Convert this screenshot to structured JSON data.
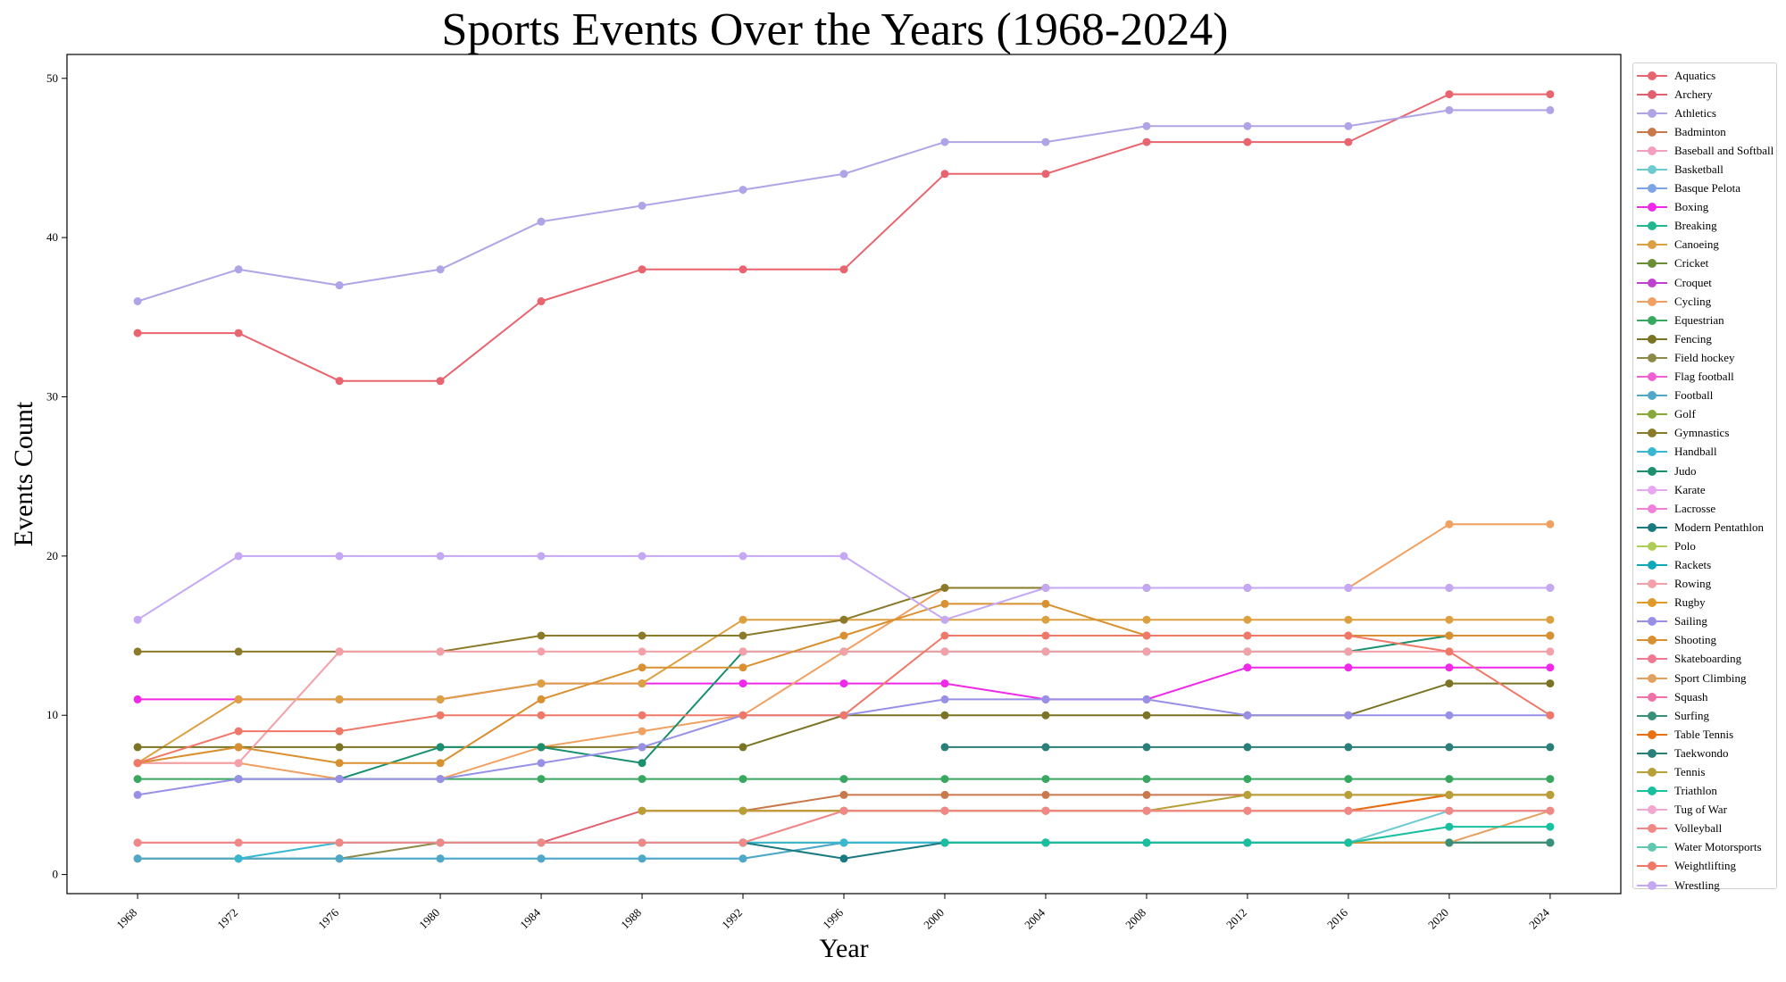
{
  "chart_data": {
    "type": "line",
    "title": "Sports Events Over the Years (1968-2024)",
    "xlabel": "Year",
    "ylabel": "Events Count",
    "ylim": [
      -1.2,
      51.5
    ],
    "yticks": [
      0,
      10,
      20,
      30,
      40,
      50
    ],
    "grid": false,
    "legend_position": "right",
    "x": [
      1968,
      1972,
      1976,
      1980,
      1984,
      1988,
      1992,
      1996,
      2000,
      2004,
      2008,
      2012,
      2016,
      2020,
      2024
    ],
    "series": [
      {
        "name": "Aquatics",
        "color": "#e8646e",
        "values": [
          34,
          34,
          31,
          31,
          36,
          38,
          38,
          38,
          44,
          44,
          46,
          46,
          46,
          49,
          49
        ]
      },
      {
        "name": "Archery",
        "color": "#e2606e",
        "values": [
          2,
          2,
          2,
          2,
          2,
          4,
          4,
          4,
          4,
          4,
          4,
          4,
          4,
          5,
          5
        ]
      },
      {
        "name": "Athletics",
        "color": "#b0a4e6",
        "values": [
          36,
          38,
          37,
          38,
          41,
          42,
          43,
          44,
          46,
          46,
          47,
          47,
          47,
          48,
          48
        ]
      },
      {
        "name": "Badminton",
        "color": "#c8784a",
        "values": [
          null,
          null,
          null,
          null,
          null,
          null,
          4,
          5,
          5,
          5,
          5,
          5,
          5,
          5,
          5
        ]
      },
      {
        "name": "Baseball and Softball",
        "color": "#f2a0c0",
        "values": [
          null,
          null,
          null,
          null,
          null,
          null,
          2,
          4,
          4,
          4,
          4,
          null,
          null,
          2,
          null
        ]
      },
      {
        "name": "Basketball",
        "color": "#6ccbd2",
        "values": [
          1,
          1,
          1,
          1,
          1,
          1,
          1,
          2,
          2,
          2,
          2,
          2,
          2,
          4,
          4
        ]
      },
      {
        "name": "Basque Pelota",
        "color": "#7aa4e6",
        "values": [
          null,
          null,
          null,
          null,
          null,
          null,
          null,
          null,
          null,
          null,
          null,
          null,
          null,
          null,
          null
        ]
      },
      {
        "name": "Boxing",
        "color": "#f028e8",
        "values": [
          11,
          11,
          11,
          11,
          12,
          12,
          12,
          12,
          12,
          11,
          11,
          13,
          13,
          13,
          13
        ]
      },
      {
        "name": "Breaking",
        "color": "#20b890",
        "values": [
          null,
          null,
          null,
          null,
          null,
          null,
          null,
          null,
          null,
          null,
          null,
          null,
          null,
          null,
          2
        ]
      },
      {
        "name": "Canoeing",
        "color": "#dca040",
        "values": [
          7,
          11,
          11,
          11,
          12,
          12,
          16,
          16,
          16,
          16,
          16,
          16,
          16,
          16,
          16
        ]
      },
      {
        "name": "Cricket",
        "color": "#6a8e38",
        "values": [
          null,
          null,
          null,
          null,
          null,
          null,
          null,
          null,
          null,
          null,
          null,
          null,
          null,
          null,
          null
        ]
      },
      {
        "name": "Croquet",
        "color": "#c040d0",
        "values": [
          null,
          null,
          null,
          null,
          null,
          null,
          null,
          null,
          null,
          null,
          null,
          null,
          null,
          null,
          null
        ]
      },
      {
        "name": "Cycling",
        "color": "#f0a060",
        "values": [
          7,
          7,
          6,
          6,
          8,
          9,
          10,
          14,
          18,
          18,
          18,
          18,
          18,
          22,
          22
        ]
      },
      {
        "name": "Equestrian",
        "color": "#38a860",
        "values": [
          6,
          6,
          6,
          6,
          6,
          6,
          6,
          6,
          6,
          6,
          6,
          6,
          6,
          6,
          6
        ]
      },
      {
        "name": "Fencing",
        "color": "#7a7424",
        "values": [
          8,
          8,
          8,
          8,
          8,
          8,
          8,
          10,
          10,
          10,
          10,
          10,
          10,
          12,
          12
        ]
      },
      {
        "name": "Field hockey",
        "color": "#8c8a48",
        "values": [
          1,
          1,
          1,
          2,
          2,
          2,
          2,
          2,
          2,
          2,
          2,
          2,
          2,
          2,
          2
        ]
      },
      {
        "name": "Flag football",
        "color": "#f060d0",
        "values": [
          null,
          null,
          null,
          null,
          null,
          null,
          null,
          null,
          null,
          null,
          null,
          null,
          null,
          null,
          null
        ]
      },
      {
        "name": "Football",
        "color": "#50a8c8",
        "values": [
          1,
          1,
          1,
          1,
          1,
          1,
          1,
          2,
          2,
          2,
          2,
          2,
          2,
          2,
          2
        ]
      },
      {
        "name": "Golf",
        "color": "#88a838",
        "values": [
          null,
          null,
          null,
          null,
          null,
          null,
          null,
          null,
          null,
          null,
          null,
          null,
          2,
          2,
          2
        ]
      },
      {
        "name": "Gymnastics",
        "color": "#8a7a2a",
        "values": [
          14,
          14,
          14,
          14,
          15,
          15,
          15,
          16,
          18,
          18,
          18,
          18,
          18,
          18,
          18
        ]
      },
      {
        "name": "Handball",
        "color": "#38b8d0",
        "values": [
          null,
          1,
          2,
          2,
          2,
          2,
          2,
          2,
          2,
          2,
          2,
          2,
          2,
          2,
          2
        ]
      },
      {
        "name": "Judo",
        "color": "#1a9070",
        "values": [
          null,
          6,
          6,
          8,
          8,
          7,
          14,
          14,
          14,
          14,
          14,
          14,
          14,
          15,
          15
        ]
      },
      {
        "name": "Karate",
        "color": "#e8a8f0",
        "values": [
          null,
          null,
          null,
          null,
          null,
          null,
          null,
          null,
          null,
          null,
          null,
          null,
          null,
          null,
          null
        ]
      },
      {
        "name": "Lacrosse",
        "color": "#f080d8",
        "values": [
          null,
          null,
          null,
          null,
          null,
          null,
          null,
          null,
          null,
          null,
          null,
          null,
          null,
          null,
          null
        ]
      },
      {
        "name": "Modern Pentathlon",
        "color": "#1a7a80",
        "values": [
          null,
          null,
          null,
          null,
          null,
          null,
          2,
          1,
          2,
          2,
          2,
          2,
          2,
          2,
          2
        ]
      },
      {
        "name": "Polo",
        "color": "#b0cc58",
        "values": [
          null,
          null,
          null,
          null,
          null,
          null,
          null,
          null,
          null,
          null,
          null,
          null,
          null,
          null,
          null
        ]
      },
      {
        "name": "Rackets",
        "color": "#10a8b8",
        "values": [
          null,
          null,
          null,
          null,
          null,
          null,
          null,
          null,
          null,
          null,
          null,
          null,
          null,
          null,
          null
        ]
      },
      {
        "name": "Rowing",
        "color": "#f4a0a8",
        "values": [
          7,
          7,
          14,
          14,
          14,
          14,
          14,
          14,
          14,
          14,
          14,
          14,
          14,
          14,
          14
        ]
      },
      {
        "name": "Rugby",
        "color": "#e09a28",
        "values": [
          null,
          null,
          null,
          null,
          null,
          null,
          null,
          null,
          null,
          null,
          null,
          null,
          2,
          2,
          2
        ]
      },
      {
        "name": "Sailing",
        "color": "#9890e6",
        "values": [
          5,
          6,
          6,
          6,
          7,
          8,
          10,
          10,
          11,
          11,
          11,
          10,
          10,
          10,
          10
        ]
      },
      {
        "name": "Shooting",
        "color": "#d89030",
        "values": [
          7,
          8,
          7,
          7,
          11,
          13,
          13,
          15,
          17,
          17,
          15,
          15,
          15,
          15,
          15
        ]
      },
      {
        "name": "Skateboarding",
        "color": "#f07890",
        "values": [
          null,
          null,
          null,
          null,
          null,
          null,
          null,
          null,
          null,
          null,
          null,
          null,
          null,
          4,
          4
        ]
      },
      {
        "name": "Sport Climbing",
        "color": "#e4a060",
        "values": [
          null,
          null,
          null,
          null,
          null,
          null,
          null,
          null,
          null,
          null,
          null,
          null,
          null,
          2,
          4
        ]
      },
      {
        "name": "Squash",
        "color": "#f070a8",
        "values": [
          null,
          null,
          null,
          null,
          null,
          null,
          null,
          null,
          null,
          null,
          null,
          null,
          null,
          null,
          null
        ]
      },
      {
        "name": "Surfing",
        "color": "#38907a",
        "values": [
          null,
          null,
          null,
          null,
          null,
          null,
          null,
          null,
          null,
          null,
          null,
          null,
          null,
          2,
          2
        ]
      },
      {
        "name": "Table Tennis",
        "color": "#e87010",
        "values": [
          null,
          null,
          null,
          null,
          null,
          4,
          4,
          4,
          4,
          4,
          4,
          4,
          4,
          5,
          5
        ]
      },
      {
        "name": "Taekwondo",
        "color": "#2a8078",
        "values": [
          null,
          null,
          null,
          null,
          null,
          null,
          null,
          null,
          8,
          8,
          8,
          8,
          8,
          8,
          8
        ]
      },
      {
        "name": "Tennis",
        "color": "#b8a038",
        "values": [
          null,
          null,
          null,
          null,
          null,
          4,
          4,
          4,
          4,
          4,
          4,
          5,
          5,
          5,
          5
        ]
      },
      {
        "name": "Triathlon",
        "color": "#18c0a0",
        "values": [
          null,
          null,
          null,
          null,
          null,
          null,
          null,
          null,
          2,
          2,
          2,
          2,
          2,
          3,
          3
        ]
      },
      {
        "name": "Tug of War",
        "color": "#f0a8d0",
        "values": [
          null,
          null,
          null,
          null,
          null,
          null,
          null,
          null,
          null,
          null,
          null,
          null,
          null,
          null,
          null
        ]
      },
      {
        "name": "Volleyball",
        "color": "#f08888",
        "values": [
          2,
          2,
          2,
          2,
          2,
          2,
          2,
          4,
          4,
          4,
          4,
          4,
          4,
          4,
          4
        ]
      },
      {
        "name": "Water Motorsports",
        "color": "#60c8b0",
        "values": [
          null,
          null,
          null,
          null,
          null,
          null,
          null,
          null,
          null,
          null,
          null,
          null,
          null,
          null,
          null
        ]
      },
      {
        "name": "Weightlifting",
        "color": "#f07868",
        "values": [
          7,
          9,
          9,
          10,
          10,
          10,
          10,
          10,
          15,
          15,
          15,
          15,
          15,
          14,
          10
        ]
      },
      {
        "name": "Wrestling",
        "color": "#c4a8f4",
        "values": [
          16,
          20,
          20,
          20,
          20,
          20,
          20,
          20,
          16,
          18,
          18,
          18,
          18,
          18,
          18
        ]
      }
    ]
  }
}
